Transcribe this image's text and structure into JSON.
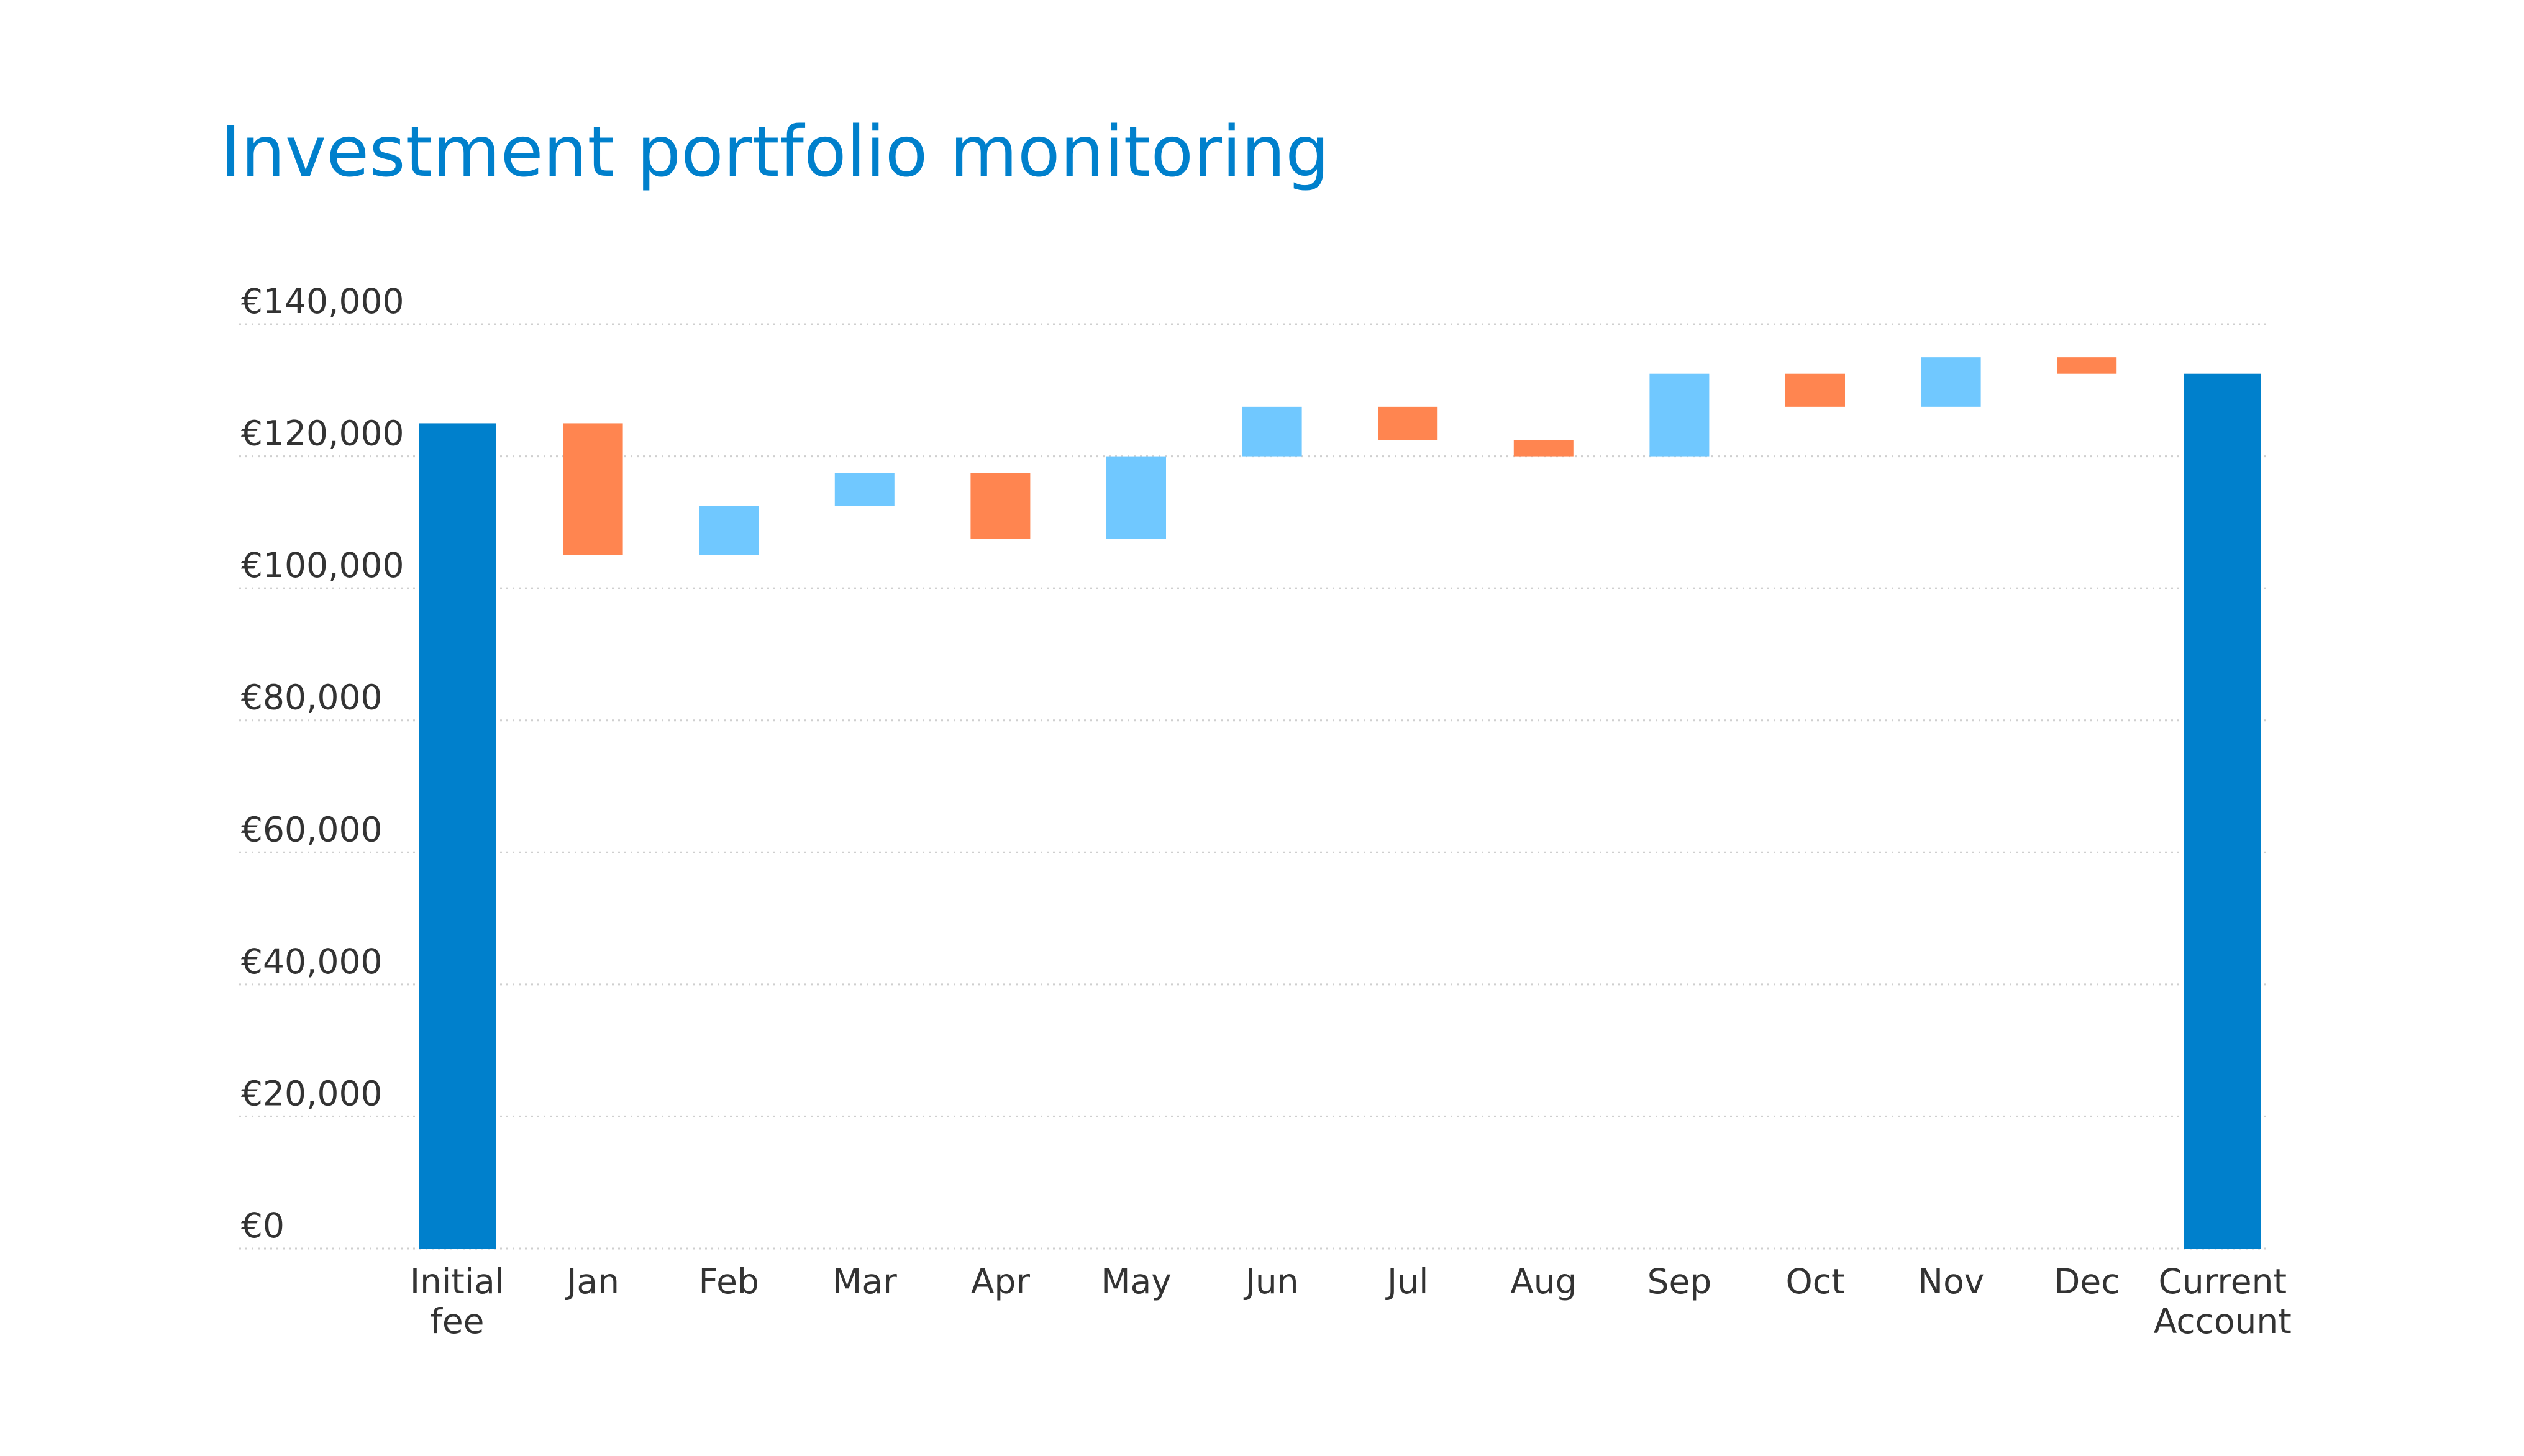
{
  "chart_data": {
    "type": "waterfall",
    "title": "Investment portfolio monitoring",
    "title_color": "#0080CC",
    "currency_prefix": "€",
    "ylim": [
      0,
      140000
    ],
    "y_ticks": [
      0,
      20000,
      40000,
      60000,
      80000,
      100000,
      120000,
      140000
    ],
    "y_tick_labels": [
      "€0",
      "€20,000",
      "€40,000",
      "€60,000",
      "€80,000",
      "€100,000",
      "€120,000",
      "€140,000"
    ],
    "grid": true,
    "colors": {
      "total": "#0080CC",
      "increase": "#70C8FF",
      "decrease": "#FF8550"
    },
    "bars": [
      {
        "label": [
          "Initial",
          "fee"
        ],
        "kind": "total",
        "start": 0,
        "end": 125000
      },
      {
        "label": [
          "Jan"
        ],
        "kind": "decrease",
        "start": 125000,
        "end": 105000
      },
      {
        "label": [
          "Feb"
        ],
        "kind": "increase",
        "start": 105000,
        "end": 112500
      },
      {
        "label": [
          "Mar"
        ],
        "kind": "increase",
        "start": 112500,
        "end": 117500
      },
      {
        "label": [
          "Apr"
        ],
        "kind": "decrease",
        "start": 117500,
        "end": 107500
      },
      {
        "label": [
          "May"
        ],
        "kind": "increase",
        "start": 107500,
        "end": 120000
      },
      {
        "label": [
          "Jun"
        ],
        "kind": "increase",
        "start": 120000,
        "end": 127500
      },
      {
        "label": [
          "Jul"
        ],
        "kind": "decrease",
        "start": 127500,
        "end": 122500
      },
      {
        "label": [
          "Aug"
        ],
        "kind": "decrease",
        "start": 122500,
        "end": 120000
      },
      {
        "label": [
          "Sep"
        ],
        "kind": "increase",
        "start": 120000,
        "end": 132500
      },
      {
        "label": [
          "Oct"
        ],
        "kind": "decrease",
        "start": 132500,
        "end": 127500
      },
      {
        "label": [
          "Nov"
        ],
        "kind": "increase",
        "start": 127500,
        "end": 135000
      },
      {
        "label": [
          "Dec"
        ],
        "kind": "decrease",
        "start": 135000,
        "end": 132500
      },
      {
        "label": [
          "Current",
          "Account"
        ],
        "kind": "total",
        "start": 0,
        "end": 132500
      }
    ]
  }
}
